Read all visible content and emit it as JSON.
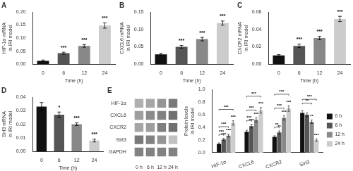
{
  "chart_data": [
    {
      "type": "bar",
      "title": "A",
      "xlabel": "Time (h)",
      "ylabel": "HIF-1α mRNA\nin IRI model",
      "categories": [
        "0",
        "6",
        "12",
        "24"
      ],
      "values": [
        0.013,
        0.042,
        0.07,
        0.148
      ],
      "errors": [
        0.003,
        0.004,
        0.005,
        0.01
      ],
      "colors": [
        "#111111",
        "#555555",
        "#888888",
        "#cccccc"
      ],
      "ylim": [
        0.0,
        0.2
      ],
      "yticks": [
        {
          "value": 0.0,
          "label": "0.00"
        },
        0.05,
        {
          "value": 0.1,
          "label": "0.10"
        },
        0.15,
        {
          "value": 0.2,
          "label": "0.20"
        }
      ],
      "grid": false,
      "annotations": [
        {
          "x": "6",
          "text": "***"
        },
        {
          "x": "12",
          "text": "***"
        },
        {
          "x": "24",
          "text": "***"
        }
      ]
    },
    {
      "type": "bar",
      "title": "B",
      "xlabel": "Time (h)",
      "ylabel": "CXCL6 mRNA\nin IRI model",
      "categories": [
        "0",
        "6",
        "12",
        "24"
      ],
      "values": [
        0.028,
        0.05,
        0.072,
        0.118
      ],
      "errors": [
        0.003,
        0.004,
        0.005,
        0.006
      ],
      "colors": [
        "#111111",
        "#555555",
        "#888888",
        "#cccccc"
      ],
      "ylim": [
        0.0,
        0.15
      ],
      "yticks": [
        {
          "value": 0.0,
          "label": "0.00"
        },
        0.05,
        {
          "value": 0.1,
          "label": "0.10"
        },
        0.15
      ],
      "grid": false,
      "annotations": [
        {
          "x": "6",
          "text": "***"
        },
        {
          "x": "12",
          "text": "***"
        },
        {
          "x": "24",
          "text": "***"
        }
      ]
    },
    {
      "type": "bar",
      "title": "C",
      "xlabel": "Time (h)",
      "ylabel": "CXCR2 mRNA\nin IRI model",
      "categories": [
        "0",
        "6",
        "12",
        "24"
      ],
      "values": [
        0.01,
        0.021,
        0.03,
        0.052
      ],
      "errors": [
        0.001,
        0.002,
        0.002,
        0.003
      ],
      "colors": [
        "#111111",
        "#555555",
        "#888888",
        "#cccccc"
      ],
      "ylim": [
        0.0,
        0.06
      ],
      "yticks": [
        {
          "value": 0.0,
          "label": "0.00"
        },
        0.02,
        0.04,
        0.06
      ],
      "grid": false,
      "annotations": [
        {
          "x": "6",
          "text": "***"
        },
        {
          "x": "12",
          "text": "***"
        },
        {
          "x": "24",
          "text": "***"
        }
      ]
    },
    {
      "type": "bar",
      "title": "D",
      "xlabel": "Time (h)",
      "ylabel": "Sirt3 mRNA\nin IRI model",
      "categories": [
        "0",
        "6",
        "12",
        "24"
      ],
      "values": [
        0.033,
        0.027,
        0.02,
        0.008
      ],
      "errors": [
        0.003,
        0.002,
        0.001,
        0.001
      ],
      "colors": [
        "#111111",
        "#555555",
        "#888888",
        "#cccccc"
      ],
      "ylim": [
        0.0,
        0.04
      ],
      "yticks": [
        {
          "value": 0.0,
          "label": "0.00"
        },
        0.01,
        0.02,
        0.03,
        0.04
      ],
      "grid": false,
      "annotations": [
        {
          "x": "6",
          "text": "*"
        },
        {
          "x": "12",
          "text": "***"
        },
        {
          "x": "24",
          "text": "***"
        }
      ]
    },
    {
      "type": "heatmap",
      "title": "E",
      "categories": [
        "0 h",
        "6 h",
        "12 h",
        "24 h"
      ],
      "rows": [
        "HIF-1α",
        "CXCL6",
        "CXCR2",
        "Sirt3",
        "GAPDH"
      ],
      "cells": [
        [
          0.45,
          0.5,
          0.6,
          0.75
        ],
        [
          0.55,
          0.65,
          0.7,
          0.8
        ],
        [
          0.5,
          0.55,
          0.72,
          0.8
        ],
        [
          0.75,
          0.7,
          0.6,
          0.35
        ],
        [
          0.7,
          0.7,
          0.7,
          0.7
        ]
      ],
      "grid": false
    },
    {
      "type": "bar",
      "ylabel": "Protein levels\nin IRI model",
      "categories": [
        "HIF-1α",
        "CXCL6",
        "CXCR2",
        "Sirt3"
      ],
      "series": [
        {
          "name": "0 h",
          "color": "#111111",
          "values": [
            0.14,
            0.33,
            0.25,
            0.63
          ],
          "errors": [
            0.015,
            0.025,
            0.018,
            0.035
          ]
        },
        {
          "name": "6 h",
          "color": "#555555",
          "values": [
            0.21,
            0.42,
            0.32,
            0.6
          ],
          "errors": [
            0.018,
            0.03,
            0.025,
            0.03
          ],
          "annotations": [
            {
              "x": "HIF-1α",
              "text": "***"
            },
            {
              "x": "CXCL6",
              "text": "***"
            },
            {
              "x": "CXCR2",
              "text": "**"
            }
          ]
        },
        {
          "name": "12 h",
          "color": "#888888",
          "values": [
            0.27,
            0.52,
            0.55,
            0.49
          ],
          "errors": [
            0.022,
            0.035,
            0.035,
            0.028
          ],
          "annotations": [
            {
              "x": "HIF-1α",
              "text": "***"
            },
            {
              "x": "CXCL6",
              "text": "***"
            },
            {
              "x": "CXCR2",
              "text": "***"
            },
            {
              "x": "Sirt3",
              "text": "**"
            }
          ]
        },
        {
          "name": "24 h",
          "color": "#cccccc",
          "values": [
            0.47,
            0.67,
            0.7,
            0.2
          ],
          "errors": [
            0.035,
            0.045,
            0.045,
            0.018
          ],
          "annotations": [
            {
              "x": "HIF-1α",
              "text": "***"
            },
            {
              "x": "CXCL6",
              "text": "***"
            },
            {
              "x": "CXCR2",
              "text": "***"
            },
            {
              "x": "Sirt3",
              "text": "***"
            }
          ]
        }
      ],
      "ylim": [
        0.0,
        1.0
      ],
      "yticks": [
        {
          "value": 0.0,
          "label": "0.0"
        },
        0.2,
        0.4,
        0.6,
        0.8,
        {
          "value": 1.0,
          "label": "1.0"
        }
      ],
      "grid": false,
      "legend": "right"
    }
  ]
}
